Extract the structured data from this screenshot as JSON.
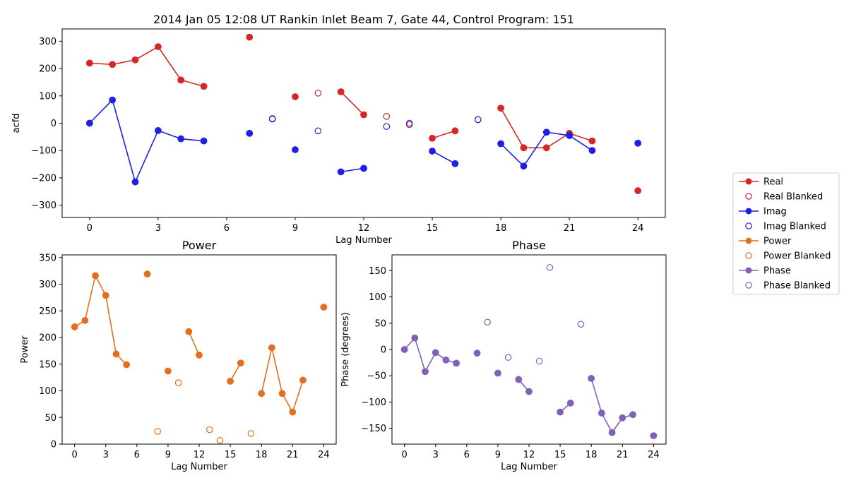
{
  "colors": {
    "real": "#d62728",
    "imag": "#1f1fe6",
    "power": "#e07020",
    "phase": "#8060b8"
  },
  "chart_data": [
    {
      "type": "scatter",
      "title": "2014 Jan 05 12:08 UT Rankin Inlet Beam 7, Gate 44, Control Program: 151",
      "xlabel": "Lag Number",
      "ylabel": "acfd",
      "xlim": [
        -1.2,
        25.2
      ],
      "ylim": [
        -345,
        345
      ],
      "xticks": [
        "0",
        "3",
        "6",
        "9",
        "12",
        "15",
        "18",
        "21",
        "24"
      ],
      "yticks": [
        "−300",
        "−200",
        "−100",
        "0",
        "100",
        "200",
        "300"
      ],
      "series": [
        {
          "name": "Real",
          "color": "#d62728",
          "style": "line-filled",
          "segments": [
            [
              [
                0,
                220
              ],
              [
                1,
                215
              ],
              [
                2,
                232
              ],
              [
                3,
                280
              ],
              [
                4,
                158
              ],
              [
                5,
                135
              ]
            ],
            [
              [
                7,
                315
              ]
            ],
            [
              [
                9,
                97
              ]
            ],
            [
              [
                11,
                115
              ],
              [
                12,
                31
              ]
            ],
            [
              [
                15,
                -55
              ],
              [
                16,
                -28
              ]
            ],
            [
              [
                18,
                55
              ],
              [
                19,
                -90
              ],
              [
                20,
                -90
              ],
              [
                21,
                -37
              ],
              [
                22,
                -65
              ]
            ],
            [
              [
                24,
                -247
              ]
            ]
          ]
        },
        {
          "name": "Real Blanked",
          "color": "#d62728",
          "style": "open",
          "points": [
            [
              8,
              15
            ],
            [
              10,
              110
            ],
            [
              13,
              25
            ],
            [
              14,
              -5
            ],
            [
              17,
              13
            ]
          ]
        },
        {
          "name": "Imag",
          "color": "#1f1fe6",
          "style": "line-filled",
          "segments": [
            [
              [
                0,
                0
              ],
              [
                1,
                85
              ],
              [
                2,
                -215
              ],
              [
                3,
                -27
              ],
              [
                4,
                -57
              ],
              [
                5,
                -65
              ]
            ],
            [
              [
                7,
                -37
              ]
            ],
            [
              [
                9,
                -97
              ]
            ],
            [
              [
                11,
                -178
              ],
              [
                12,
                -165
              ]
            ],
            [
              [
                15,
                -102
              ],
              [
                16,
                -148
              ]
            ],
            [
              [
                18,
                -75
              ],
              [
                19,
                -157
              ],
              [
                20,
                -33
              ],
              [
                21,
                -45
              ],
              [
                22,
                -100
              ]
            ],
            [
              [
                24,
                -73
              ]
            ]
          ]
        },
        {
          "name": "Imag Blanked",
          "color": "#1f1fe6",
          "style": "open",
          "points": [
            [
              8,
              17
            ],
            [
              10,
              -28
            ],
            [
              13,
              -12
            ],
            [
              14,
              0
            ],
            [
              17,
              13
            ]
          ]
        }
      ]
    },
    {
      "type": "scatter",
      "title": "Power",
      "xlabel": "Lag Number",
      "ylabel": "Power",
      "xlim": [
        -1.2,
        25.2
      ],
      "ylim": [
        0,
        355
      ],
      "xticks": [
        "0",
        "3",
        "6",
        "9",
        "12",
        "15",
        "18",
        "21",
        "24"
      ],
      "yticks": [
        "0",
        "50",
        "100",
        "150",
        "200",
        "250",
        "300",
        "350"
      ],
      "series": [
        {
          "name": "Power",
          "color": "#e07020",
          "style": "line-filled",
          "segments": [
            [
              [
                0,
                220
              ],
              [
                1,
                232
              ],
              [
                2,
                316
              ],
              [
                3,
                279
              ],
              [
                4,
                169
              ],
              [
                5,
                149
              ]
            ],
            [
              [
                7,
                319
              ]
            ],
            [
              [
                9,
                137
              ]
            ],
            [
              [
                11,
                211
              ],
              [
                12,
                167
              ]
            ],
            [
              [
                15,
                118
              ],
              [
                16,
                152
              ]
            ],
            [
              [
                18,
                95
              ],
              [
                19,
                181
              ],
              [
                20,
                95
              ],
              [
                21,
                60
              ],
              [
                22,
                120
              ]
            ],
            [
              [
                24,
                257
              ]
            ]
          ]
        },
        {
          "name": "Power Blanked",
          "color": "#e07020",
          "style": "open",
          "points": [
            [
              8,
              24
            ],
            [
              10,
              115
            ],
            [
              13,
              27
            ],
            [
              14,
              7
            ],
            [
              17,
              20
            ]
          ]
        }
      ]
    },
    {
      "type": "scatter",
      "title": "Phase",
      "xlabel": "Lag Number",
      "ylabel": "Phase (degrees)",
      "xlim": [
        -1.2,
        25.2
      ],
      "ylim": [
        -180,
        180
      ],
      "xticks": [
        "0",
        "3",
        "6",
        "9",
        "12",
        "15",
        "18",
        "21",
        "24"
      ],
      "yticks": [
        "−150",
        "−100",
        "−50",
        "0",
        "50",
        "100",
        "150"
      ],
      "series": [
        {
          "name": "Phase",
          "color": "#8060b8",
          "style": "line-filled",
          "segments": [
            [
              [
                0,
                0
              ],
              [
                1,
                22
              ],
              [
                2,
                -42
              ],
              [
                3,
                -6
              ],
              [
                4,
                -20
              ],
              [
                5,
                -26
              ]
            ],
            [
              [
                7,
                -7
              ]
            ],
            [
              [
                9,
                -45
              ]
            ],
            [
              [
                11,
                -57
              ],
              [
                12,
                -80
              ]
            ],
            [
              [
                15,
                -119
              ],
              [
                16,
                -102
              ]
            ],
            [
              [
                18,
                -55
              ],
              [
                19,
                -121
              ],
              [
                20,
                -158
              ],
              [
                21,
                -130
              ],
              [
                22,
                -124
              ]
            ],
            [
              [
                24,
                -164
              ]
            ]
          ]
        },
        {
          "name": "Phase Blanked",
          "color": "#8060b8",
          "style": "open",
          "points": [
            [
              8,
              52
            ],
            [
              10,
              -15
            ],
            [
              13,
              -22
            ],
            [
              14,
              156
            ],
            [
              17,
              48
            ]
          ]
        }
      ]
    }
  ],
  "legend": {
    "placement": "right",
    "entries": [
      {
        "label": "Real",
        "color": "#d62728",
        "style": "line-filled"
      },
      {
        "label": "Real Blanked",
        "color": "#d62728",
        "style": "open"
      },
      {
        "label": "Imag",
        "color": "#1f1fe6",
        "style": "line-filled"
      },
      {
        "label": "Imag Blanked",
        "color": "#1f1fe6",
        "style": "open"
      },
      {
        "label": "Power",
        "color": "#e07020",
        "style": "line-filled"
      },
      {
        "label": "Power Blanked",
        "color": "#e07020",
        "style": "open"
      },
      {
        "label": "Phase",
        "color": "#8060b8",
        "style": "line-filled"
      },
      {
        "label": "Phase Blanked",
        "color": "#8060b8",
        "style": "open"
      }
    ]
  }
}
